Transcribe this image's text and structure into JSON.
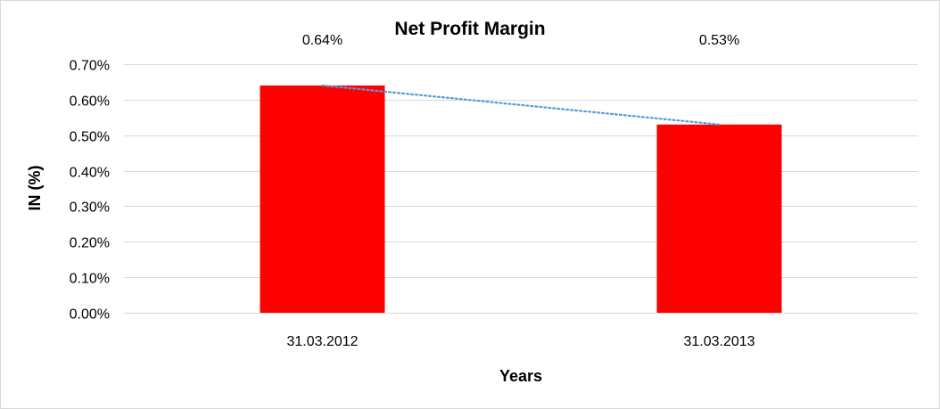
{
  "chart_data": {
    "type": "bar",
    "title": "Net Profit Margin",
    "xlabel": "Years",
    "ylabel": "IN (%)",
    "categories": [
      "31.03.2012",
      "31.03.2013"
    ],
    "values": [
      0.64,
      0.53
    ],
    "data_labels": [
      "0.64%",
      "0.53%"
    ],
    "ylim": [
      0,
      0.7
    ],
    "ytick_values": [
      0,
      0.1,
      0.2,
      0.3,
      0.4,
      0.5,
      0.6,
      0.7
    ],
    "ytick_labels": [
      "0.00%",
      "0.10%",
      "0.20%",
      "0.30%",
      "0.40%",
      "0.50%",
      "0.60%",
      "0.70%"
    ],
    "bar_color": "#ff0000",
    "trendline": {
      "type": "linear",
      "style": "dotted",
      "color": "#5b9bd5"
    },
    "grid": true,
    "legend": "none"
  }
}
